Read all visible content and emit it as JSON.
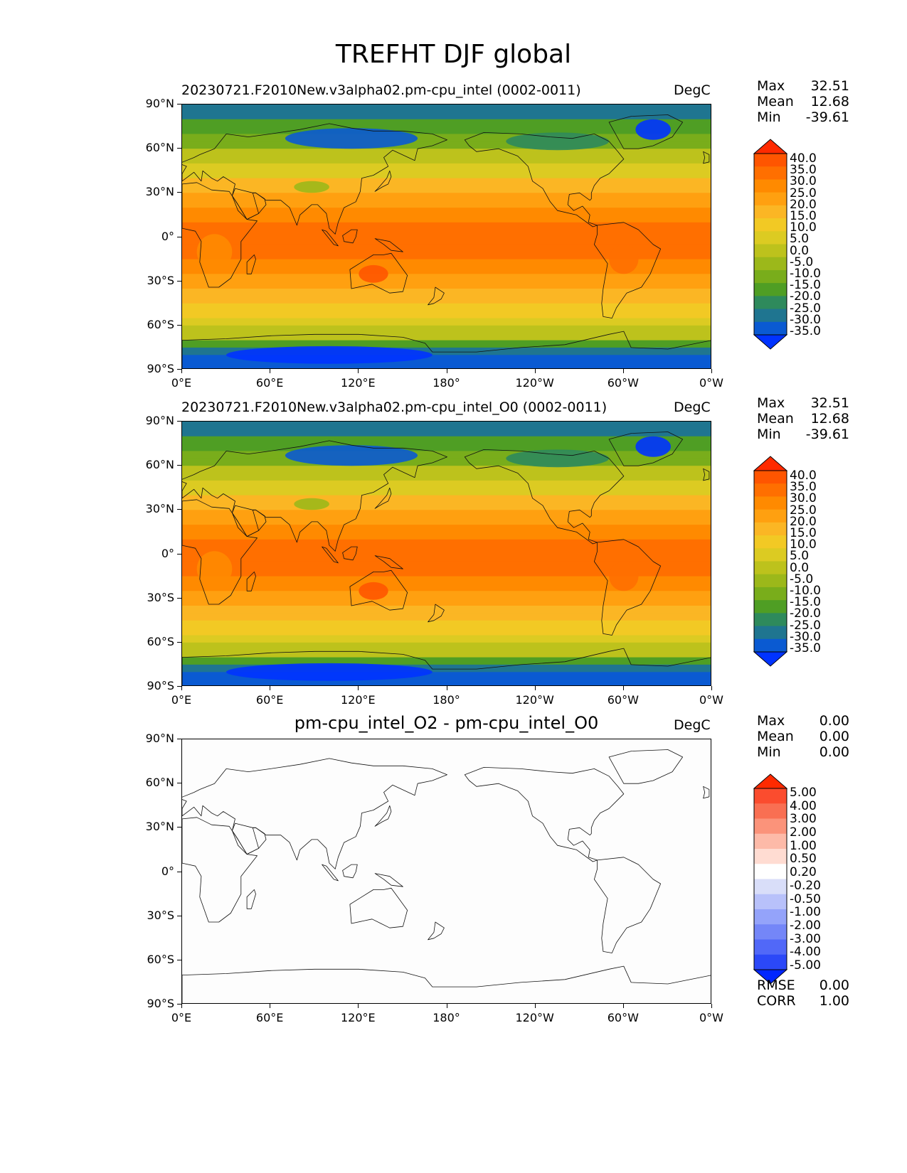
{
  "figure_title": "TREFHT DJF global",
  "units": "DegC",
  "lat_ticks": [
    "90°N",
    "60°N",
    "30°N",
    "0°",
    "30°S",
    "60°S",
    "90°S"
  ],
  "lon_ticks": [
    "0°E",
    "60°E",
    "120°E",
    "180°",
    "120°W",
    "60°W",
    "0°W"
  ],
  "panels": [
    {
      "subtitle": "20230721.F2010New.v3alpha02.pm-cpu_intel (0002-0011)",
      "stats": [
        {
          "label": "Max",
          "value": "32.51"
        },
        {
          "label": "Mean",
          "value": "12.68"
        },
        {
          "label": "Min",
          "value": "-39.61"
        }
      ],
      "colorbar_labels": [
        "40.0",
        "35.0",
        "30.0",
        "25.0",
        "20.0",
        "15.0",
        "10.0",
        "5.0",
        "0.0",
        "-5.0",
        "-10.0",
        "-15.0",
        "-20.0",
        "-25.0",
        "-30.0",
        "-35.0"
      ]
    },
    {
      "subtitle": "20230721.F2010New.v3alpha02.pm-cpu_intel_O0 (0002-0011)",
      "stats": [
        {
          "label": "Max",
          "value": "32.51"
        },
        {
          "label": "Mean",
          "value": "12.68"
        },
        {
          "label": "Min",
          "value": "-39.61"
        }
      ],
      "colorbar_labels": [
        "40.0",
        "35.0",
        "30.0",
        "25.0",
        "20.0",
        "15.0",
        "10.0",
        "5.0",
        "0.0",
        "-5.0",
        "-10.0",
        "-15.0",
        "-20.0",
        "-25.0",
        "-30.0",
        "-35.0"
      ]
    },
    {
      "subtitle": "pm-cpu_intel_O2 - pm-cpu_intel_O0",
      "stats": [
        {
          "label": "Max",
          "value": "0.00"
        },
        {
          "label": "Mean",
          "value": "0.00"
        },
        {
          "label": "Min",
          "value": "0.00"
        }
      ],
      "colorbar_labels": [
        "5.00",
        "4.00",
        "3.00",
        "2.00",
        "1.00",
        "0.50",
        "0.20",
        "-0.20",
        "-0.50",
        "-1.00",
        "-2.00",
        "-3.00",
        "-4.00",
        "-5.00"
      ],
      "metrics": [
        {
          "label": "RMSE",
          "value": "0.00"
        },
        {
          "label": "CORR",
          "value": "1.00"
        }
      ]
    }
  ],
  "colors": {
    "temp_scale": [
      "#ff2a00",
      "#ff5500",
      "#ff6f00",
      "#ff8a00",
      "#ffa010",
      "#fbb624",
      "#f2c924",
      "#dccb22",
      "#bdc21c",
      "#9cb81a",
      "#79ad1b",
      "#4f9e24",
      "#2e8a5c",
      "#1f7590",
      "#0a5ad2",
      "#0033ff"
    ],
    "diff_scale": [
      "#ff2a00",
      "#fb4c2e",
      "#f96f52",
      "#fb937a",
      "#fdbaa8",
      "#ffdcd2",
      "#ffffff",
      "#d9def9",
      "#b8c1fa",
      "#94a3fa",
      "#7486f8",
      "#5168f8",
      "#2b48f8",
      "#0026ff"
    ]
  }
}
